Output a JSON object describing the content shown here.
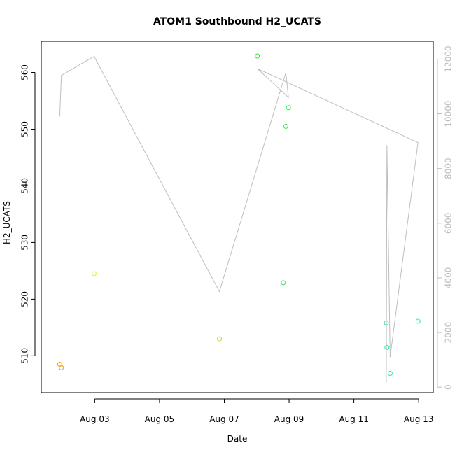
{
  "chart_data": {
    "type": "scatter",
    "title": "ATOM1 Southbound H2_UCATS",
    "xlabel": "Date",
    "ylabel": "H2_UCATS",
    "x_ticks": [
      {
        "label": "Aug 03",
        "day": 3
      },
      {
        "label": "Aug 05",
        "day": 5
      },
      {
        "label": "Aug 07",
        "day": 7
      },
      {
        "label": "Aug 09",
        "day": 9
      },
      {
        "label": "Aug 11",
        "day": 11
      },
      {
        "label": "Aug 13",
        "day": 13
      }
    ],
    "y_ticks": [
      510,
      520,
      530,
      540,
      550,
      560
    ],
    "y2_ticks": [
      0,
      2000,
      4000,
      6000,
      8000,
      10000,
      12000
    ],
    "xlim_days": [
      1.35,
      13.45
    ],
    "ylim": [
      503.5,
      565.5
    ],
    "y2lim": [
      -200,
      12650
    ],
    "grid": false,
    "points": [
      {
        "day": 1.92,
        "y": 508.5,
        "color": "#f59b00"
      },
      {
        "day": 1.97,
        "y": 507.9,
        "color": "#f59b00"
      },
      {
        "day": 2.98,
        "y": 524.5,
        "color": "#e8e832"
      },
      {
        "day": 6.85,
        "y": 513.0,
        "color": "#a8e632"
      },
      {
        "day": 8.02,
        "y": 562.9,
        "color": "#2ee62e"
      },
      {
        "day": 8.82,
        "y": 522.9,
        "color": "#2ee65a"
      },
      {
        "day": 8.9,
        "y": 550.5,
        "color": "#2ee65a"
      },
      {
        "day": 8.98,
        "y": 553.8,
        "color": "#2ee65a"
      },
      {
        "day": 12.0,
        "y": 515.8,
        "color": "#2ee6a0"
      },
      {
        "day": 12.02,
        "y": 511.5,
        "color": "#2ee6a0"
      },
      {
        "day": 12.12,
        "y": 506.9,
        "color": "#2ee6a0"
      },
      {
        "day": 12.98,
        "y": 516.1,
        "color": "#2ee6c0"
      }
    ],
    "altitude_series": {
      "color": "#bebebe",
      "points": [
        {
          "day": 1.92,
          "alt": 9900
        },
        {
          "day": 1.97,
          "alt": 11400
        },
        {
          "day": 2.98,
          "alt": 12100
        },
        {
          "day": 6.85,
          "alt": 3500
        },
        {
          "day": 8.9,
          "alt": 11500
        },
        {
          "day": 8.98,
          "alt": 10600
        },
        {
          "day": 8.02,
          "alt": 11650
        },
        {
          "day": 12.98,
          "alt": 8950
        },
        {
          "day": 12.12,
          "alt": 1100
        },
        {
          "day": 12.02,
          "alt": 8850
        },
        {
          "day": 12.0,
          "alt": 200
        },
        {
          "day": 12.02,
          "alt": 200
        }
      ]
    }
  }
}
